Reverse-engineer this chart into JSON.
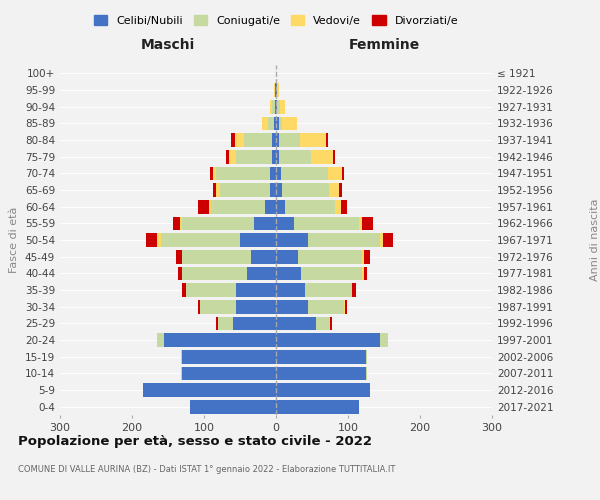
{
  "age_groups": [
    "0-4",
    "5-9",
    "10-14",
    "15-19",
    "20-24",
    "25-29",
    "30-34",
    "35-39",
    "40-44",
    "45-49",
    "50-54",
    "55-59",
    "60-64",
    "65-69",
    "70-74",
    "75-79",
    "80-84",
    "85-89",
    "90-94",
    "95-99",
    "100+"
  ],
  "birth_years": [
    "2017-2021",
    "2012-2016",
    "2007-2011",
    "2002-2006",
    "1997-2001",
    "1992-1996",
    "1987-1991",
    "1982-1986",
    "1977-1981",
    "1972-1976",
    "1967-1971",
    "1962-1966",
    "1957-1961",
    "1952-1956",
    "1947-1951",
    "1942-1946",
    "1937-1941",
    "1932-1936",
    "1927-1931",
    "1922-1926",
    "≤ 1921"
  ],
  "maschi": {
    "celibi": [
      120,
      185,
      130,
      130,
      155,
      60,
      55,
      55,
      40,
      35,
      50,
      30,
      15,
      8,
      8,
      5,
      5,
      3,
      2,
      1,
      0
    ],
    "coniugati": [
      0,
      0,
      2,
      2,
      10,
      20,
      50,
      70,
      90,
      95,
      110,
      100,
      75,
      70,
      75,
      50,
      40,
      8,
      3,
      1,
      0
    ],
    "vedovi": [
      0,
      0,
      0,
      0,
      0,
      0,
      0,
      0,
      1,
      1,
      5,
      3,
      3,
      5,
      5,
      10,
      12,
      8,
      3,
      1,
      0
    ],
    "divorziati": [
      0,
      0,
      0,
      0,
      0,
      3,
      3,
      5,
      5,
      8,
      15,
      10,
      15,
      5,
      3,
      5,
      5,
      0,
      0,
      0,
      0
    ]
  },
  "femmine": {
    "nubili": [
      115,
      130,
      125,
      125,
      145,
      55,
      45,
      40,
      35,
      30,
      45,
      25,
      12,
      8,
      7,
      4,
      4,
      4,
      2,
      1,
      0
    ],
    "coniugate": [
      0,
      0,
      1,
      1,
      10,
      20,
      50,
      65,
      85,
      90,
      100,
      90,
      70,
      65,
      65,
      45,
      30,
      5,
      3,
      1,
      0
    ],
    "vedove": [
      0,
      0,
      0,
      0,
      0,
      0,
      1,
      1,
      2,
      2,
      3,
      5,
      8,
      15,
      20,
      30,
      35,
      20,
      8,
      2,
      0
    ],
    "divorziate": [
      0,
      0,
      0,
      0,
      1,
      3,
      3,
      5,
      5,
      8,
      15,
      15,
      8,
      3,
      3,
      3,
      3,
      0,
      0,
      0,
      0
    ]
  },
  "colors": {
    "celibi": "#4472c4",
    "coniugati": "#c5d9a0",
    "vedovi": "#ffd966",
    "divorziati": "#cc0000"
  },
  "xlim": 300,
  "title": "Popolazione per età, sesso e stato civile - 2022",
  "subtitle": "COMUNE DI VALLE AURINA (BZ) - Dati ISTAT 1° gennaio 2022 - Elaborazione TUTTITALIA.IT",
  "ylabel_left": "Fasce di età",
  "ylabel_right": "Anni di nascita",
  "xlabel_left": "Maschi",
  "xlabel_right": "Femmine",
  "legend_labels": [
    "Celibi/Nubili",
    "Coniugati/e",
    "Vedovi/e",
    "Divorziati/e"
  ],
  "bg_color": "#f2f2f2"
}
